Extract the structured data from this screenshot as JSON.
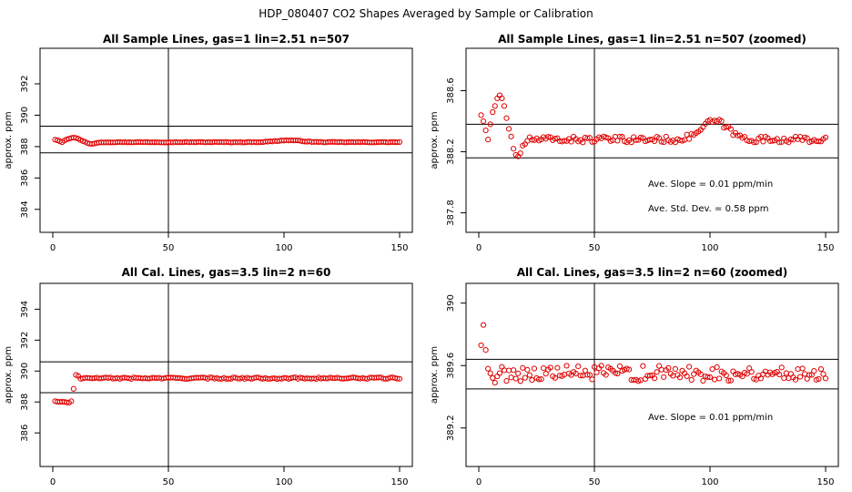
{
  "main_title": "HDP_080407  CO2 Shapes Averaged by Sample or Calibration",
  "chart_data": [
    {
      "type": "scatter",
      "title": "All Sample Lines, gas=1 lin=2.51 n=507",
      "xlabel": "",
      "ylabel": "approx. ppm",
      "xlim": [
        0,
        150
      ],
      "ylim": [
        383,
        393.8
      ],
      "xticks": [
        0,
        50,
        100,
        150
      ],
      "yticks": [
        384,
        386,
        388,
        390,
        392
      ],
      "ref_x": [
        50
      ],
      "ref_y": [
        387.6,
        389.3
      ],
      "annotations": [],
      "series": [
        {
          "color": "#e00000",
          "base_y": 388.28,
          "early_y": [
            388.44,
            388.4,
            388.34,
            388.28,
            388.38,
            388.46,
            388.5,
            388.55,
            388.57,
            388.55,
            388.5,
            388.42,
            388.35,
            388.3,
            388.22,
            388.18,
            388.17,
            388.19,
            388.24,
            388.25
          ],
          "bump_center": 102,
          "bump_height": 0.12,
          "bump_width": 8,
          "noise": 0.02
        }
      ]
    },
    {
      "type": "scatter",
      "title": "All Sample Lines, gas=1 lin=2.51 n=507 (zoomed)",
      "xlabel": "",
      "ylabel": "approx. ppm",
      "xlim": [
        0,
        150
      ],
      "ylim": [
        387.72,
        388.83
      ],
      "xticks": [
        0,
        50,
        100,
        150
      ],
      "yticks": [
        387.8,
        388.2,
        388.6
      ],
      "ref_x": [
        50
      ],
      "ref_y": [
        388.38,
        388.16
      ],
      "annotations": [
        "Ave. Slope =  0.01  ppm/min",
        "Ave. Std. Dev. =  0.58  ppm"
      ],
      "series": [
        {
          "color": "#e00000",
          "base_y": 388.28,
          "early_y": [
            388.44,
            388.4,
            388.34,
            388.28,
            388.38,
            388.46,
            388.5,
            388.55,
            388.57,
            388.55,
            388.5,
            388.42,
            388.35,
            388.3,
            388.22,
            388.18,
            388.17,
            388.19,
            388.24,
            388.25
          ],
          "bump_center": 102,
          "bump_height": 0.12,
          "bump_width": 8,
          "noise": 0.02
        }
      ]
    },
    {
      "type": "scatter",
      "title": "All Cal. Lines, gas=3.5 lin=2 n=60",
      "xlabel": "",
      "ylabel": "approx. ppm",
      "xlim": [
        0,
        150
      ],
      "ylim": [
        384.3,
        395.2
      ],
      "xticks": [
        0,
        50,
        100,
        150
      ],
      "yticks": [
        386,
        388,
        390,
        392,
        394
      ],
      "ref_x": [
        50
      ],
      "ref_y": [
        390.6,
        388.6
      ],
      "annotations": [],
      "series": [
        {
          "color": "#e00000",
          "base_y": 389.54,
          "early_y": [
            388.05,
            388.02,
            388.0,
            388.02,
            388.0,
            387.98,
            387.95,
            388.05,
            388.85,
            389.75,
            389.68,
            389.5
          ],
          "noise": 0.05
        }
      ]
    },
    {
      "type": "scatter",
      "title": "All Cal. Lines, gas=3.5 lin=2 n=60 (zoomed)",
      "xlabel": "",
      "ylabel": "approx. ppm",
      "xlim": [
        0,
        150
      ],
      "ylim": [
        389.0,
        390.08
      ],
      "xticks": [
        0,
        50,
        100,
        150
      ],
      "yticks": [
        389.2,
        389.6,
        390.0
      ],
      "ref_x": [
        50
      ],
      "ref_y": [
        389.64,
        389.45
      ],
      "annotations": [
        "Ave. Slope =  0.01  ppm/min"
      ],
      "series": [
        {
          "color": "#e00000",
          "base_y": 389.55,
          "early_y": [
            389.73,
            389.86,
            389.7,
            389.58,
            389.55,
            389.52,
            389.49
          ],
          "noise": 0.05
        }
      ]
    }
  ]
}
